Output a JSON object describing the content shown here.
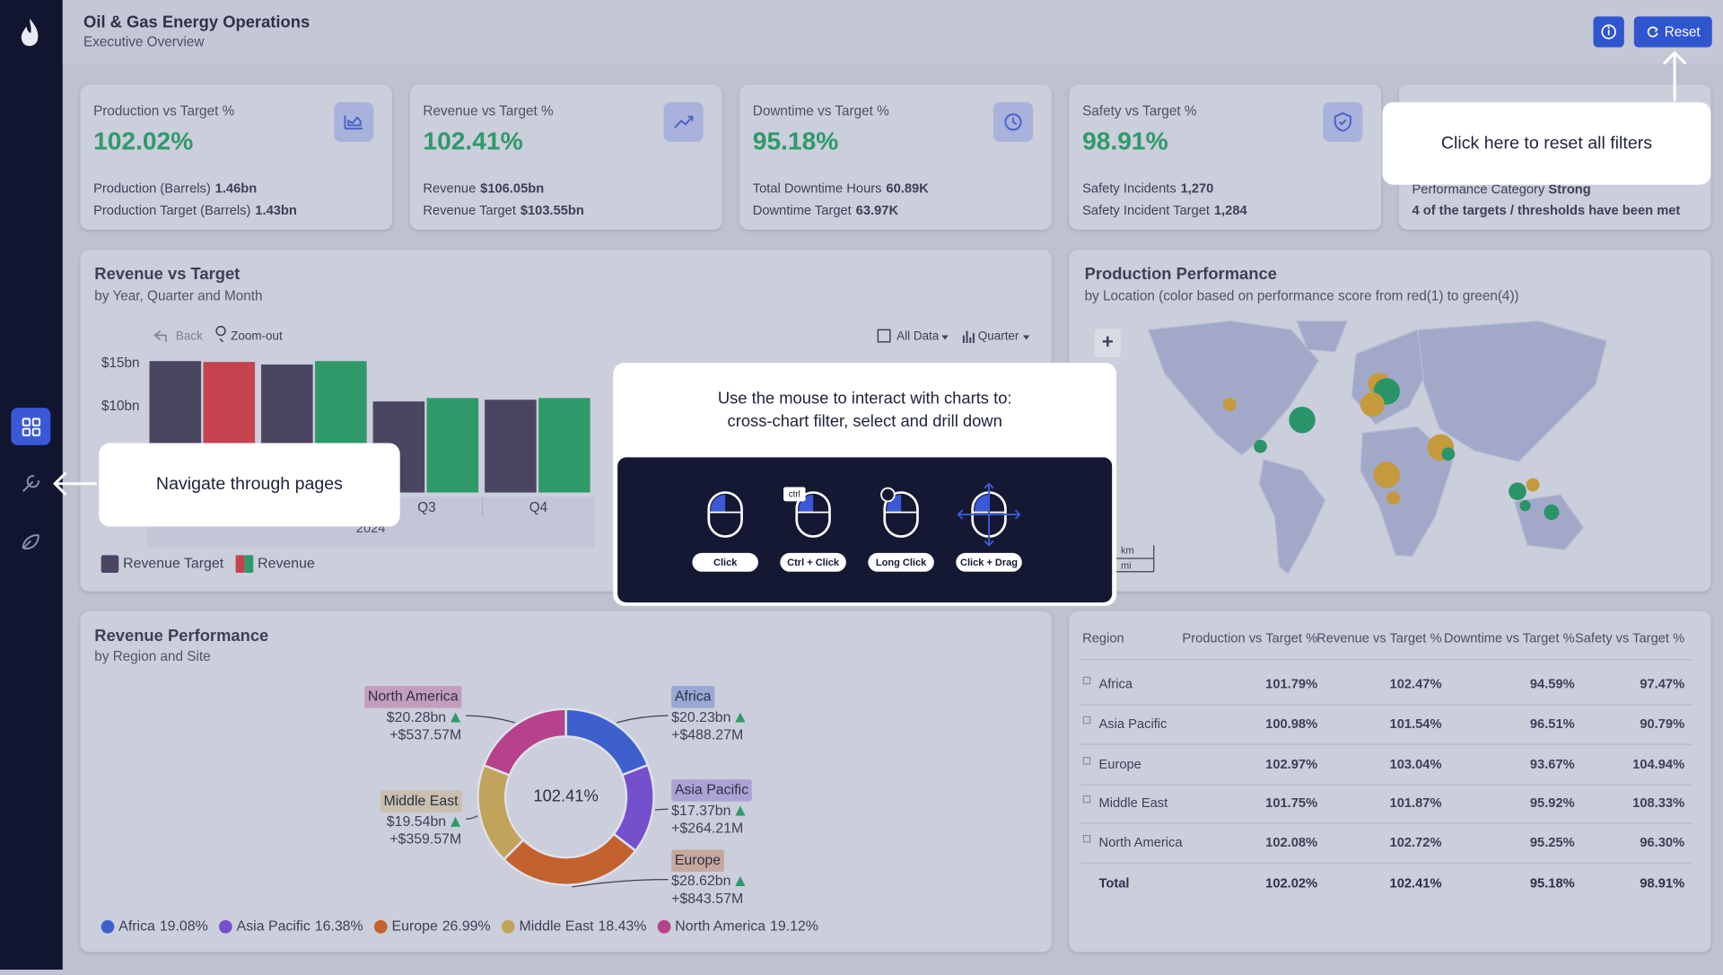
{
  "header": {
    "title": "Oil & Gas Energy Operations",
    "subtitle": "Executive Overview",
    "reset_button": "Reset"
  },
  "kpis": [
    {
      "label": "Production vs Target %",
      "value": "102.02%",
      "details": [
        {
          "label": "Production (Barrels)",
          "value": "1.46bn"
        },
        {
          "label": "Production Target (Barrels)",
          "value": "1.43bn"
        }
      ]
    },
    {
      "label": "Revenue vs Target %",
      "value": "102.41%",
      "details": [
        {
          "label": "Revenue",
          "value": "$106.05bn"
        },
        {
          "label": "Revenue Target",
          "value": "$103.55bn"
        }
      ]
    },
    {
      "label": "Downtime vs Target %",
      "value": "95.18%",
      "details": [
        {
          "label": "Total Downtime Hours",
          "value": "60.89K"
        },
        {
          "label": "Downtime Target",
          "value": "63.97K"
        }
      ]
    },
    {
      "label": "Safety vs Target %",
      "value": "98.91%",
      "details": [
        {
          "label": "Safety Incidents",
          "value": "1,270"
        },
        {
          "label": "Safety Incident Target",
          "value": "1,284"
        }
      ]
    }
  ],
  "performance_card": {
    "details": [
      {
        "label": "Performance Category",
        "value": "Strong"
      }
    ],
    "note": "4 of the targets / thresholds have been met"
  },
  "reset_tooltip": "Click here to reset all filters",
  "nav_tooltip": "Navigate through pages",
  "revenue_chart": {
    "title": "Revenue vs Target",
    "subtitle": "by Year, Quarter and Month",
    "toolbar": [
      "Back",
      "Zoom-out",
      "All Data",
      "Quarter"
    ],
    "chart": {
      "type": "bar",
      "categories": [
        null,
        null,
        "Q3",
        "Q4"
      ],
      "group_label": "2024",
      "series": [
        {
          "name": "Revenue Target",
          "color": "#4a4662",
          "values": [
            15.3,
            14.9,
            10.6,
            10.8
          ]
        },
        {
          "name": "Revenue",
          "colors": [
            "#c4434f",
            "#2e9a6a",
            "#2e9a6a",
            "#2e9a6a"
          ],
          "values": [
            15.2,
            15.3,
            11.0,
            11.0
          ]
        }
      ],
      "ylim": [
        0,
        16
      ],
      "yticks": [
        {
          "value": 10,
          "label": "$10bn"
        },
        {
          "value": 15,
          "label": "$15bn"
        }
      ]
    }
  },
  "mouse_help": {
    "lines": [
      "Use the mouse to interact with charts to:",
      "cross-chart filter, select and drill down"
    ],
    "gestures": [
      "Click",
      "Ctrl + Click",
      "Long Click",
      "Click + Drag"
    ],
    "ctrl_key": "ctrl"
  },
  "production_map": {
    "title": "Production Performance",
    "subtitle": "by Location (color based on performance score from red(1) to green(4))",
    "zoom_button": "+",
    "scale": [
      "km",
      "mi"
    ]
  },
  "revenue_performance": {
    "title": "Revenue Performance",
    "subtitle": "by Region and Site",
    "center_label": "102.41%",
    "chart": {
      "type": "pie",
      "donut": true,
      "series": [
        {
          "name": "Africa",
          "color": "#3d60cc",
          "value": 19.08,
          "value_label": "19.08%",
          "revenue": "$20.23bn",
          "delta": "+$488.27M"
        },
        {
          "name": "Asia Pacific",
          "color": "#7550cc",
          "value": 16.38,
          "value_label": "16.38%",
          "revenue": "$17.37bn",
          "delta": "+$264.21M"
        },
        {
          "name": "Europe",
          "color": "#c4622f",
          "value": 26.99,
          "value_label": "26.99%",
          "revenue": "$28.62bn",
          "delta": "+$843.57M"
        },
        {
          "name": "Middle East",
          "color": "#c2a35c",
          "value": 18.43,
          "value_label": "18.43%",
          "revenue": "$19.54bn",
          "delta": "+$359.57M"
        },
        {
          "name": "North America",
          "color": "#b5428a",
          "value": 19.12,
          "value_label": "19.12%",
          "revenue": "$20.28bn",
          "delta": "+$537.57M"
        }
      ]
    }
  },
  "region_table": {
    "headers": [
      "Region",
      "Production vs Target %",
      "Revenue vs Target %",
      "Downtime vs Target %",
      "Safety vs Target %"
    ],
    "rows": [
      [
        "Africa",
        "101.79%",
        "102.47%",
        "94.59%",
        "97.47%"
      ],
      [
        "Asia Pacific",
        "100.98%",
        "101.54%",
        "96.51%",
        "90.79%"
      ],
      [
        "Europe",
        "102.97%",
        "103.04%",
        "93.67%",
        "104.94%"
      ],
      [
        "Middle East",
        "101.75%",
        "101.87%",
        "95.92%",
        "108.33%"
      ],
      [
        "North America",
        "102.08%",
        "102.72%",
        "95.25%",
        "96.30%"
      ]
    ],
    "total": [
      "Total",
      "102.02%",
      "102.41%",
      "95.18%",
      "98.91%"
    ]
  }
}
